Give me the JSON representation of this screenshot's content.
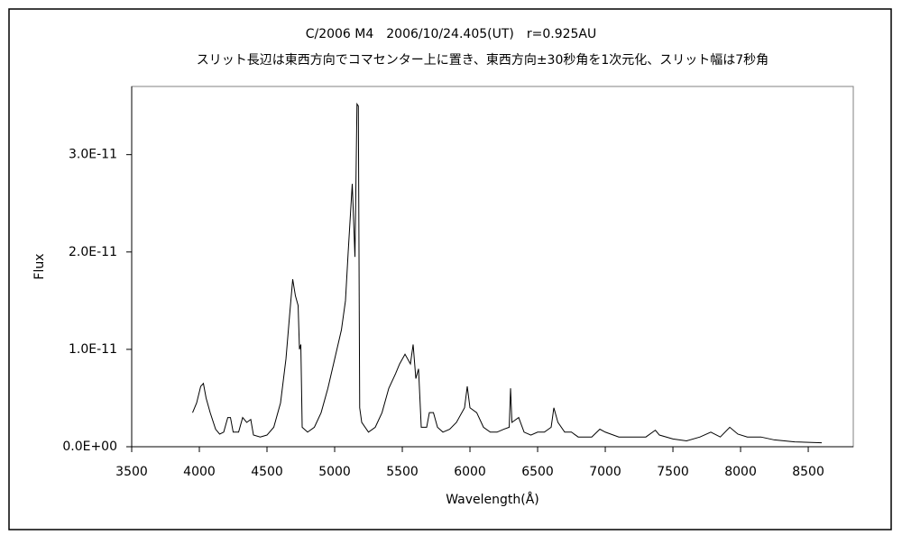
{
  "chart_data": {
    "type": "line",
    "title": "C/2006 M4　2006/10/24.405(UT)　r=0.925AU",
    "subtitle": "スリット長辺は東西方向でコマセンター上に置き、東西方向±30秒角を1次元化、スリット幅は7秒角",
    "xlabel": "Wavelength(Å)",
    "ylabel": "Flux",
    "color": "#000000",
    "x": [
      3950,
      3980,
      4010,
      4030,
      4050,
      4080,
      4120,
      4150,
      4180,
      4210,
      4230,
      4250,
      4290,
      4320,
      4350,
      4380,
      4400,
      4450,
      4500,
      4550,
      4600,
      4640,
      4670,
      4690,
      4710,
      4730,
      4740,
      4750,
      4760,
      4800,
      4850,
      4900,
      4950,
      5000,
      5050,
      5080,
      5100,
      5130,
      5150,
      5165,
      5175,
      5185,
      5200,
      5250,
      5300,
      5350,
      5400,
      5450,
      5480,
      5520,
      5560,
      5580,
      5600,
      5620,
      5640,
      5680,
      5700,
      5730,
      5760,
      5800,
      5850,
      5900,
      5960,
      5980,
      6000,
      6050,
      6100,
      6150,
      6200,
      6250,
      6290,
      6300,
      6310,
      6360,
      6400,
      6450,
      6500,
      6550,
      6600,
      6620,
      6650,
      6700,
      6750,
      6800,
      6900,
      6960,
      7000,
      7100,
      7200,
      7300,
      7370,
      7400,
      7500,
      7600,
      7700,
      7780,
      7850,
      7920,
      7980,
      8050,
      8150,
      8250,
      8400,
      8600
    ],
    "values": [
      3.5e-12,
      4.5e-12,
      6.2e-12,
      6.5e-12,
      5e-12,
      3.5e-12,
      1.8e-12,
      1.3e-12,
      1.5e-12,
      3e-12,
      3e-12,
      1.5e-12,
      1.5e-12,
      3e-12,
      2.5e-12,
      2.8e-12,
      1.2e-12,
      1e-12,
      1.2e-12,
      2e-12,
      4.5e-12,
      9e-12,
      1.4e-11,
      1.72e-11,
      1.55e-11,
      1.45e-11,
      1e-11,
      1.05e-11,
      2e-12,
      1.5e-12,
      2e-12,
      3.5e-12,
      6e-12,
      9e-12,
      1.2e-11,
      1.5e-11,
      2e-11,
      2.7e-11,
      1.95e-11,
      3.52e-11,
      3.5e-11,
      4e-12,
      2.5e-12,
      1.5e-12,
      2e-12,
      3.5e-12,
      6e-12,
      7.5e-12,
      8.5e-12,
      9.5e-12,
      8.5e-12,
      1.05e-11,
      7e-12,
      8e-12,
      2e-12,
      2e-12,
      3.5e-12,
      3.5e-12,
      2e-12,
      1.5e-12,
      1.8e-12,
      2.5e-12,
      4e-12,
      6.2e-12,
      4e-12,
      3.5e-12,
      2e-12,
      1.5e-12,
      1.5e-12,
      1.8e-12,
      2e-12,
      6e-12,
      2.5e-12,
      3e-12,
      1.5e-12,
      1.2e-12,
      1.5e-12,
      1.5e-12,
      2e-12,
      4e-12,
      2.5e-12,
      1.5e-12,
      1.5e-12,
      1e-12,
      1e-12,
      1.8e-12,
      1.5e-12,
      1e-12,
      1e-12,
      1e-12,
      1.7e-12,
      1.2e-12,
      8e-13,
      6e-13,
      1e-12,
      1.5e-12,
      1e-12,
      2e-12,
      1.3e-12,
      1e-12,
      1e-12,
      7e-13,
      5e-13,
      4e-13
    ],
    "xlim": [
      3500,
      8833
    ],
    "ylim": [
      0,
      3.7e-11
    ],
    "xticks": [
      3500,
      4000,
      4500,
      5000,
      5500,
      6000,
      6500,
      7000,
      7500,
      8000,
      8500
    ],
    "yticks": [
      {
        "value": 0,
        "label": "0.0E+00"
      },
      {
        "value": 1e-11,
        "label": "1.0E-11"
      },
      {
        "value": 2e-11,
        "label": "2.0E-11"
      },
      {
        "value": 3e-11,
        "label": "3.0E-11"
      }
    ],
    "grid": false
  }
}
